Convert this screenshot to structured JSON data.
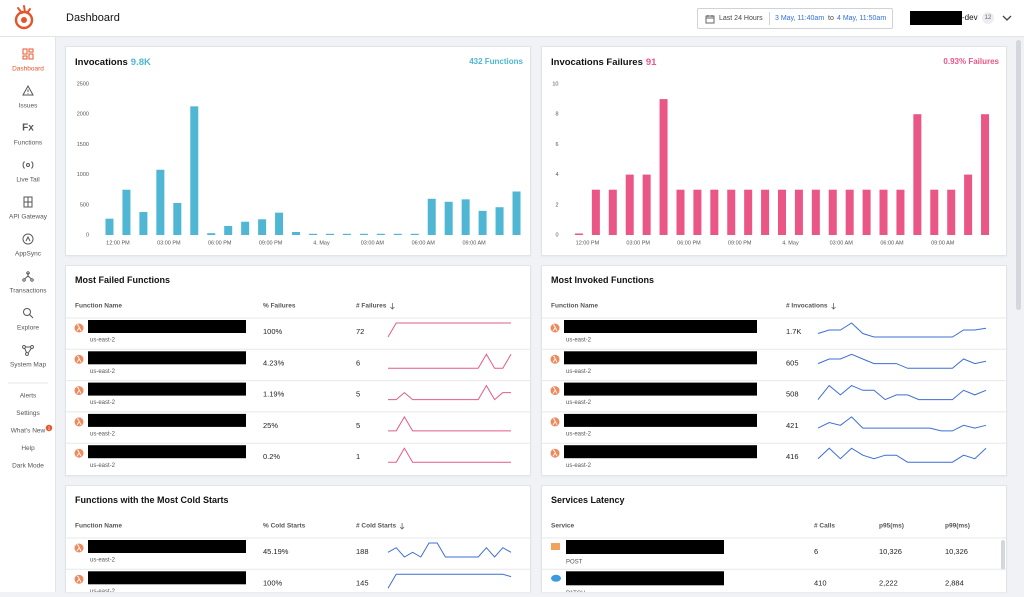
{
  "header": {
    "title": "Dashboard",
    "range_label": "Last 24 Hours",
    "range_start": "3 May, 11:40am",
    "range_sep": "to",
    "range_end": "4 May, 11:50am",
    "account": "-dev",
    "account_badge": "12"
  },
  "sidebar": {
    "active": 0,
    "items": [
      {
        "label": "Dashboard"
      },
      {
        "label": "Issues"
      },
      {
        "label": "Functions",
        "icon": "Fx"
      },
      {
        "label": "Live Tail"
      },
      {
        "label": "API Gateway"
      },
      {
        "label": "AppSync"
      },
      {
        "label": "Transactions"
      },
      {
        "label": "Explore"
      },
      {
        "label": "System Map"
      }
    ],
    "links": [
      "Alerts",
      "Settings",
      "What's New",
      "Help",
      "Dark Mode"
    ],
    "whats_new_badge": "1"
  },
  "chart_data": [
    {
      "type": "bar",
      "title": "Invocations",
      "title_value": "9.8K",
      "summary": "432 Functions",
      "color": "#4fb6d3",
      "categories": [
        null,
        "12:00 PM",
        null,
        null,
        "03:00 PM",
        null,
        null,
        "06:00 PM",
        null,
        null,
        "09:00 PM",
        null,
        null,
        "4. May",
        null,
        null,
        "03:00 AM",
        null,
        null,
        "06:00 AM",
        null,
        null,
        "09:00 AM",
        null,
        null
      ],
      "values": [
        270,
        750,
        380,
        1080,
        530,
        2130,
        30,
        150,
        220,
        260,
        370,
        50,
        20,
        20,
        20,
        20,
        20,
        20,
        20,
        600,
        550,
        590,
        400,
        460,
        720
      ],
      "ylim": [
        0,
        2500
      ],
      "yticks": [
        0,
        500,
        1000,
        1500,
        2000,
        2500
      ],
      "grid": false
    },
    {
      "type": "bar",
      "title": "Invocations Failures",
      "title_value": "91",
      "summary": "0.93% Failures",
      "color": "#ea5686",
      "categories": [
        null,
        "12:00 PM",
        null,
        null,
        "03:00 PM",
        null,
        null,
        "06:00 PM",
        null,
        null,
        "09:00 PM",
        null,
        null,
        "4. May",
        null,
        null,
        "03:00 AM",
        null,
        null,
        "06:00 AM",
        null,
        null,
        "09:00 AM",
        null,
        null
      ],
      "values": [
        0.1,
        3,
        3,
        4,
        4,
        9,
        3,
        3,
        3,
        3,
        3,
        3,
        3,
        3,
        3,
        3,
        3,
        3,
        3,
        3,
        8,
        3,
        3,
        4,
        8
      ],
      "ylim": [
        0,
        10
      ],
      "yticks": [
        0,
        2,
        4,
        6,
        8,
        10
      ],
      "grid": false
    }
  ],
  "tables": [
    {
      "title": "Most Failed Functions",
      "columns": [
        "Function Name",
        "% Failures",
        "# Failures"
      ],
      "sort_column": 2,
      "trend_color": "#e25c8a",
      "rows": [
        {
          "region": "us-east-2",
          "cells": [
            "100%",
            "72"
          ],
          "trend": [
            0,
            4,
            4,
            4,
            4,
            4,
            4,
            4,
            4,
            4,
            4,
            4,
            4,
            4,
            4,
            4
          ]
        },
        {
          "region": "us-east-2",
          "cells": [
            "4.23%",
            "6"
          ],
          "trend": [
            0,
            0,
            0,
            0,
            0,
            0,
            0,
            0,
            0,
            0,
            0,
            0,
            2,
            0,
            0,
            2
          ]
        },
        {
          "region": "us-east-2",
          "cells": [
            "1.19%",
            "5"
          ],
          "trend": [
            0,
            0,
            1,
            0,
            0,
            0,
            0,
            0,
            0,
            0,
            0,
            0,
            2,
            0,
            1,
            1
          ]
        },
        {
          "region": "us-east-2",
          "cells": [
            "25%",
            "5"
          ],
          "trend": [
            0,
            0,
            1,
            0,
            0,
            0,
            0,
            0,
            0,
            0,
            0,
            0,
            0,
            0,
            0,
            0
          ]
        },
        {
          "region": "us-east-2",
          "cells": [
            "0.2%",
            "1"
          ],
          "trend": [
            0,
            0,
            1,
            0,
            0,
            0,
            0,
            0,
            0,
            0,
            0,
            0,
            0,
            0,
            0,
            0
          ]
        }
      ]
    },
    {
      "title": "Most Invoked Functions",
      "columns": [
        "Function Name",
        "# Invocations"
      ],
      "sort_column": 1,
      "trend_color": "#3d6fd6",
      "rows": [
        {
          "region": "us-east-2",
          "cells": [
            "1.7K"
          ],
          "trend": [
            3,
            4,
            4,
            6,
            3,
            2,
            2,
            2,
            2,
            2,
            2,
            2,
            2,
            4,
            4,
            4.5
          ]
        },
        {
          "region": "us-east-2",
          "cells": [
            "605"
          ],
          "trend": [
            3,
            4,
            4,
            5,
            4,
            3,
            3,
            3,
            2,
            2,
            2,
            2,
            2,
            4,
            3,
            3.5
          ]
        },
        {
          "region": "us-east-2",
          "cells": [
            "508"
          ],
          "trend": [
            2,
            5,
            3,
            5,
            4,
            4,
            2,
            3,
            3,
            2,
            2,
            2,
            2,
            4,
            3,
            4
          ]
        },
        {
          "region": "us-east-2",
          "cells": [
            "421"
          ],
          "trend": [
            2,
            4,
            3,
            6,
            2,
            2,
            2,
            2,
            2,
            2,
            2,
            1,
            1,
            3,
            2,
            3
          ]
        },
        {
          "region": "us-east-2",
          "cells": [
            "416"
          ],
          "trend": [
            2,
            5,
            2,
            5,
            3,
            2,
            3,
            3,
            1,
            1,
            1,
            1,
            1,
            3,
            2,
            5
          ]
        }
      ]
    },
    {
      "title": "Functions with the Most Cold Starts",
      "columns": [
        "Function Name",
        "% Cold Starts",
        "# Cold Starts"
      ],
      "sort_column": 2,
      "trend_color": "#3d6fd6",
      "rows": [
        {
          "region": "us-east-2",
          "cells": [
            "45.19%",
            "188"
          ],
          "trend": [
            3,
            4,
            2,
            3,
            2,
            5,
            5,
            2,
            2,
            2,
            2,
            2,
            4,
            2,
            4,
            3
          ]
        },
        {
          "region": "us-east-2",
          "cells": [
            "100%",
            "145"
          ],
          "trend": [
            0,
            3,
            3,
            3,
            3,
            3,
            3,
            3,
            3,
            3,
            3,
            3,
            3,
            3,
            3,
            2.5
          ]
        }
      ]
    },
    {
      "title": "Services Latency",
      "columns": [
        "Service",
        "# Calls",
        "p95(ms)",
        "p99(ms)"
      ],
      "rows": [
        {
          "method": "POST",
          "cells": [
            "6",
            "10,326",
            "10,326"
          ]
        },
        {
          "method": "PATCH",
          "cells": [
            "410",
            "2,222",
            "2,884"
          ]
        }
      ]
    }
  ]
}
